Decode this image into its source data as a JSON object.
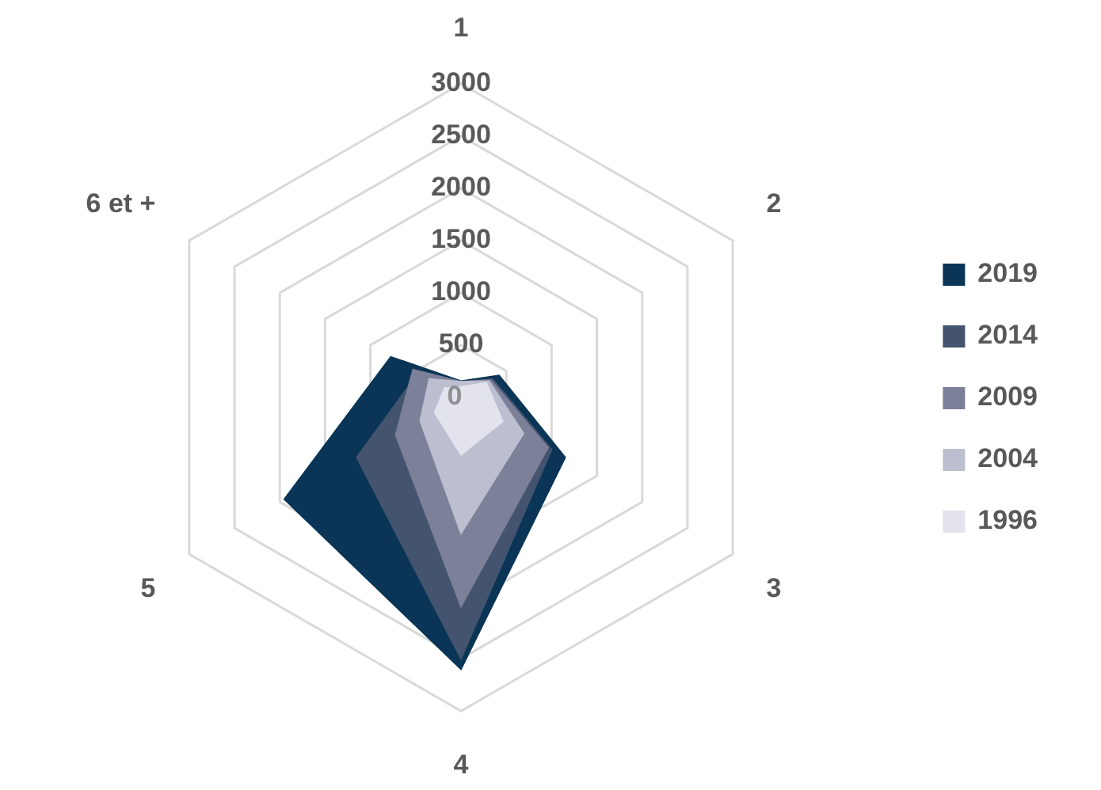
{
  "chart_data": {
    "type": "radar",
    "categories": [
      "1",
      "2",
      "3",
      "4",
      "5",
      "6 et +"
    ],
    "ylim": [
      0,
      3000
    ],
    "yticks": [
      0,
      500,
      1000,
      1500,
      2000,
      2500,
      3000
    ],
    "grid": true,
    "legend": "right",
    "marker": "none",
    "series": [
      {
        "name": "2019",
        "color": "#0a3556",
        "values": [
          155,
          420,
          1150,
          2600,
          1950,
          775
        ]
      },
      {
        "name": "2014",
        "color": "#44546e",
        "values": [
          150,
          350,
          1000,
          2500,
          1150,
          470
        ]
      },
      {
        "name": "2009",
        "color": "#7c8099",
        "values": [
          150,
          330,
          960,
          2000,
          720,
          530
        ]
      },
      {
        "name": "2004",
        "color": "#bcbfcf",
        "values": [
          150,
          310,
          690,
          1300,
          450,
          350
        ]
      },
      {
        "name": "1996",
        "color": "#e2e3ec",
        "values": [
          100,
          280,
          460,
          550,
          290,
          180
        ]
      }
    ]
  }
}
